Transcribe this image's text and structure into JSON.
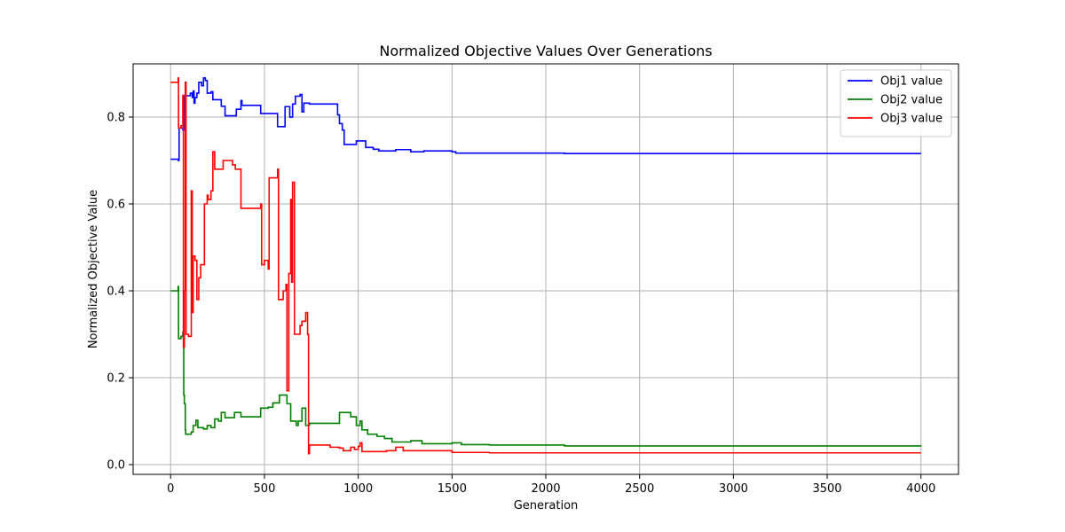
{
  "chart_data": {
    "type": "line",
    "title": "Normalized Objective Values Over Generations",
    "xlabel": "Generation",
    "ylabel": "Normalized Objective Value",
    "xlim": [
      -200,
      4200
    ],
    "ylim": [
      -0.0225,
      0.9225
    ],
    "xticks": [
      0,
      500,
      1000,
      1500,
      2000,
      2500,
      3000,
      3500,
      4000
    ],
    "yticks": [
      0.0,
      0.2,
      0.4,
      0.6,
      0.8
    ],
    "ytick_labels": [
      "0.0",
      "0.2",
      "0.4",
      "0.6",
      "0.8"
    ],
    "grid": true,
    "legend_position": "top-right",
    "series": [
      {
        "name": "Obj1 value",
        "color": "#0000ff",
        "step": true,
        "points": [
          [
            0,
            0.703
          ],
          [
            40,
            0.7
          ],
          [
            45,
            0.775
          ],
          [
            65,
            0.77
          ],
          [
            75,
            0.849
          ],
          [
            105,
            0.855
          ],
          [
            115,
            0.845
          ],
          [
            120,
            0.86
          ],
          [
            125,
            0.832
          ],
          [
            130,
            0.845
          ],
          [
            140,
            0.855
          ],
          [
            150,
            0.88
          ],
          [
            165,
            0.872
          ],
          [
            175,
            0.89
          ],
          [
            185,
            0.884
          ],
          [
            195,
            0.855
          ],
          [
            215,
            0.858
          ],
          [
            225,
            0.84
          ],
          [
            270,
            0.825
          ],
          [
            290,
            0.803
          ],
          [
            350,
            0.818
          ],
          [
            375,
            0.838
          ],
          [
            380,
            0.827
          ],
          [
            480,
            0.808
          ],
          [
            520,
            0.808
          ],
          [
            570,
            0.778
          ],
          [
            605,
            0.778
          ],
          [
            610,
            0.824
          ],
          [
            635,
            0.8
          ],
          [
            650,
            0.83
          ],
          [
            665,
            0.848
          ],
          [
            690,
            0.852
          ],
          [
            700,
            0.812
          ],
          [
            710,
            0.832
          ],
          [
            740,
            0.83
          ],
          [
            880,
            0.83
          ],
          [
            890,
            0.805
          ],
          [
            900,
            0.785
          ],
          [
            915,
            0.77
          ],
          [
            925,
            0.737
          ],
          [
            970,
            0.737
          ],
          [
            990,
            0.745
          ],
          [
            1040,
            0.73
          ],
          [
            1080,
            0.726
          ],
          [
            1110,
            0.722
          ],
          [
            1200,
            0.725
          ],
          [
            1280,
            0.72
          ],
          [
            1350,
            0.722
          ],
          [
            1500,
            0.72
          ],
          [
            1520,
            0.717
          ],
          [
            1800,
            0.717
          ],
          [
            2100,
            0.716
          ],
          [
            4000,
            0.716
          ]
        ]
      },
      {
        "name": "Obj2 value",
        "color": "#008000",
        "step": true,
        "points": [
          [
            0,
            0.4
          ],
          [
            40,
            0.41
          ],
          [
            42,
            0.29
          ],
          [
            55,
            0.295
          ],
          [
            65,
            0.305
          ],
          [
            70,
            0.16
          ],
          [
            73,
            0.14
          ],
          [
            78,
            0.08
          ],
          [
            80,
            0.07
          ],
          [
            110,
            0.075
          ],
          [
            120,
            0.09
          ],
          [
            135,
            0.102
          ],
          [
            145,
            0.085
          ],
          [
            175,
            0.082
          ],
          [
            195,
            0.09
          ],
          [
            215,
            0.085
          ],
          [
            235,
            0.105
          ],
          [
            255,
            0.1
          ],
          [
            270,
            0.12
          ],
          [
            290,
            0.108
          ],
          [
            340,
            0.12
          ],
          [
            375,
            0.11
          ],
          [
            470,
            0.11
          ],
          [
            480,
            0.13
          ],
          [
            520,
            0.132
          ],
          [
            545,
            0.142
          ],
          [
            580,
            0.16
          ],
          [
            620,
            0.14
          ],
          [
            640,
            0.1
          ],
          [
            670,
            0.09
          ],
          [
            680,
            0.1
          ],
          [
            700,
            0.13
          ],
          [
            720,
            0.09
          ],
          [
            740,
            0.095
          ],
          [
            900,
            0.12
          ],
          [
            960,
            0.11
          ],
          [
            990,
            0.09
          ],
          [
            1010,
            0.1
          ],
          [
            1020,
            0.08
          ],
          [
            1050,
            0.07
          ],
          [
            1100,
            0.065
          ],
          [
            1140,
            0.06
          ],
          [
            1180,
            0.052
          ],
          [
            1280,
            0.055
          ],
          [
            1340,
            0.048
          ],
          [
            1500,
            0.05
          ],
          [
            1550,
            0.046
          ],
          [
            1700,
            0.045
          ],
          [
            2100,
            0.043
          ],
          [
            4000,
            0.042
          ]
        ]
      },
      {
        "name": "Obj3 value",
        "color": "#ff0000",
        "step": true,
        "points": [
          [
            0,
            0.88
          ],
          [
            40,
            0.89
          ],
          [
            42,
            0.775
          ],
          [
            55,
            0.78
          ],
          [
            65,
            0.85
          ],
          [
            68,
            0.27
          ],
          [
            73,
            0.4
          ],
          [
            78,
            0.88
          ],
          [
            82,
            0.3
          ],
          [
            95,
            0.295
          ],
          [
            110,
            0.63
          ],
          [
            115,
            0.35
          ],
          [
            120,
            0.48
          ],
          [
            130,
            0.47
          ],
          [
            140,
            0.38
          ],
          [
            150,
            0.43
          ],
          [
            160,
            0.46
          ],
          [
            175,
            0.46
          ],
          [
            180,
            0.6
          ],
          [
            195,
            0.62
          ],
          [
            200,
            0.61
          ],
          [
            215,
            0.63
          ],
          [
            225,
            0.72
          ],
          [
            235,
            0.68
          ],
          [
            255,
            0.68
          ],
          [
            280,
            0.7
          ],
          [
            330,
            0.69
          ],
          [
            345,
            0.68
          ],
          [
            375,
            0.59
          ],
          [
            480,
            0.6
          ],
          [
            485,
            0.46
          ],
          [
            500,
            0.47
          ],
          [
            520,
            0.45
          ],
          [
            525,
            0.66
          ],
          [
            570,
            0.68
          ],
          [
            575,
            0.38
          ],
          [
            600,
            0.4
          ],
          [
            615,
            0.415
          ],
          [
            620,
            0.17
          ],
          [
            630,
            0.44
          ],
          [
            640,
            0.61
          ],
          [
            645,
            0.42
          ],
          [
            650,
            0.65
          ],
          [
            660,
            0.3
          ],
          [
            680,
            0.3
          ],
          [
            690,
            0.32
          ],
          [
            700,
            0.33
          ],
          [
            720,
            0.35
          ],
          [
            730,
            0.3
          ],
          [
            735,
            0.025
          ],
          [
            740,
            0.045
          ],
          [
            850,
            0.04
          ],
          [
            900,
            0.038
          ],
          [
            920,
            0.032
          ],
          [
            960,
            0.04
          ],
          [
            980,
            0.035
          ],
          [
            1000,
            0.042
          ],
          [
            1010,
            0.05
          ],
          [
            1020,
            0.03
          ],
          [
            1100,
            0.03
          ],
          [
            1150,
            0.032
          ],
          [
            1200,
            0.04
          ],
          [
            1240,
            0.032
          ],
          [
            1500,
            0.028
          ],
          [
            1700,
            0.027
          ],
          [
            2100,
            0.027
          ],
          [
            4000,
            0.027
          ]
        ]
      }
    ]
  }
}
